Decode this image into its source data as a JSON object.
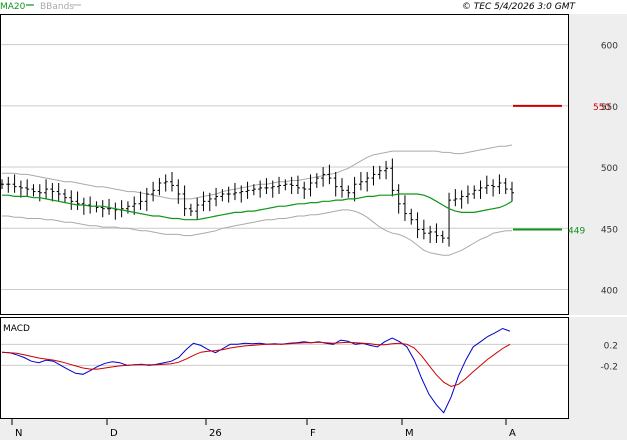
{
  "header": {
    "legend_ma20": "MA20",
    "legend_bbands": "BBands",
    "timestamp": "© TEC 5/4/2026 3:0 GMT"
  },
  "macd_panel": {
    "title": "MACD"
  },
  "colors": {
    "price_bar": "#000000",
    "ma20": "#109618",
    "bbands": "#aaaaaa",
    "resistance": "#cc0000",
    "support": "#109618",
    "macd_line": "#0000cc",
    "signal_line": "#cc0000",
    "grid": "#cccccc",
    "axis_panel_bg": "#eeeeee"
  },
  "chart_data": [
    {
      "type": "ohlc",
      "ylim": [
        380,
        625
      ],
      "y_ticks": [
        "600",
        "550",
        "500",
        "450",
        "400"
      ],
      "x_ticks": [
        "N",
        "D",
        "26",
        "F",
        "M",
        "A"
      ],
      "grid": true,
      "series": [
        {
          "name": "MA20",
          "values": [
            477,
            477,
            476,
            476,
            476,
            475,
            475,
            474,
            473,
            472,
            471,
            470,
            469,
            469,
            468,
            468,
            468,
            467,
            466,
            465,
            464,
            463,
            462,
            461,
            460,
            460,
            459,
            458,
            458,
            457,
            457,
            457,
            458,
            459,
            460,
            461,
            462,
            463,
            463,
            464,
            464,
            465,
            466,
            467,
            468,
            468,
            469,
            470,
            470,
            471,
            471,
            472,
            472,
            473,
            473,
            474,
            474,
            475,
            476,
            476,
            477,
            477,
            477,
            478,
            478,
            478,
            478,
            477,
            475,
            472,
            469,
            466,
            464,
            463,
            463,
            463,
            464,
            465,
            466,
            467,
            469,
            472
          ]
        },
        {
          "name": "BBands",
          "values": [
            [
              495,
              460
            ],
            [
              495,
              460
            ],
            [
              495,
              459
            ],
            [
              494,
              459
            ],
            [
              494,
              458
            ],
            [
              493,
              458
            ],
            [
              492,
              458
            ],
            [
              491,
              457
            ],
            [
              490,
              457
            ],
            [
              489,
              456
            ],
            [
              488,
              455
            ],
            [
              488,
              455
            ],
            [
              487,
              454
            ],
            [
              486,
              453
            ],
            [
              485,
              452
            ],
            [
              484,
              452
            ],
            [
              484,
              451
            ],
            [
              483,
              451
            ],
            [
              482,
              451
            ],
            [
              481,
              450
            ],
            [
              480,
              450
            ],
            [
              480,
              449
            ],
            [
              479,
              448
            ],
            [
              478,
              448
            ],
            [
              477,
              447
            ],
            [
              476,
              446
            ],
            [
              475,
              445
            ],
            [
              474,
              445
            ],
            [
              474,
              445
            ],
            [
              474,
              444
            ],
            [
              474,
              444
            ],
            [
              475,
              445
            ],
            [
              476,
              446
            ],
            [
              477,
              447
            ],
            [
              478,
              448
            ],
            [
              480,
              450
            ],
            [
              481,
              451
            ],
            [
              482,
              452
            ],
            [
              483,
              453
            ],
            [
              484,
              454
            ],
            [
              485,
              455
            ],
            [
              486,
              456
            ],
            [
              486,
              457
            ],
            [
              487,
              457
            ],
            [
              488,
              458
            ],
            [
              488,
              458
            ],
            [
              489,
              459
            ],
            [
              489,
              460
            ],
            [
              490,
              460
            ],
            [
              491,
              461
            ],
            [
              492,
              461
            ],
            [
              493,
              462
            ],
            [
              494,
              463
            ],
            [
              495,
              464
            ],
            [
              497,
              465
            ],
            [
              499,
              465
            ],
            [
              502,
              464
            ],
            [
              505,
              462
            ],
            [
              508,
              459
            ],
            [
              510,
              455
            ],
            [
              511,
              451
            ],
            [
              512,
              448
            ],
            [
              513,
              446
            ],
            [
              513,
              445
            ],
            [
              513,
              443
            ],
            [
              513,
              440
            ],
            [
              513,
              436
            ],
            [
              513,
              432
            ],
            [
              513,
              430
            ],
            [
              513,
              429
            ],
            [
              512,
              428
            ],
            [
              512,
              428
            ],
            [
              511,
              430
            ],
            [
              511,
              432
            ],
            [
              512,
              435
            ],
            [
              513,
              438
            ],
            [
              514,
              441
            ],
            [
              515,
              443
            ],
            [
              516,
              446
            ],
            [
              517,
              447
            ],
            [
              517,
              448
            ],
            [
              518,
              448
            ]
          ]
        },
        {
          "name": "price",
          "ohlc_close": [
            486,
            486,
            484,
            483,
            482,
            480,
            479,
            482,
            480,
            478,
            475,
            472,
            470,
            469,
            468,
            467,
            466,
            466,
            465,
            466,
            468,
            470,
            472,
            478,
            481,
            487,
            488,
            485,
            478,
            466,
            464,
            469,
            472,
            474,
            476,
            478,
            478,
            479,
            480,
            481,
            482,
            483,
            483,
            484,
            485,
            486,
            485,
            483,
            482,
            487,
            491,
            494,
            491,
            484,
            481,
            479,
            486,
            488,
            491,
            494,
            497,
            499,
            481,
            470,
            462,
            457,
            449,
            446,
            447,
            444,
            442,
            473,
            474,
            476,
            478,
            481,
            483,
            485,
            484,
            487,
            482,
            479
          ]
        }
      ],
      "levels": [
        {
          "label": "550",
          "value": 550
        },
        {
          "label": "449",
          "value": 449
        }
      ]
    },
    {
      "type": "line",
      "title": "MACD",
      "y_ticks": [
        "0.2",
        "-0.2"
      ],
      "ylim": [
        -1.2,
        0.7
      ],
      "series": [
        {
          "name": "MACD",
          "values": [
            0.05,
            0.04,
            0.0,
            -0.05,
            -0.12,
            -0.15,
            -0.1,
            -0.12,
            -0.2,
            -0.28,
            -0.35,
            -0.37,
            -0.3,
            -0.22,
            -0.16,
            -0.13,
            -0.15,
            -0.2,
            -0.19,
            -0.18,
            -0.2,
            -0.18,
            -0.15,
            -0.12,
            -0.05,
            0.1,
            0.22,
            0.18,
            0.1,
            0.04,
            0.12,
            0.2,
            0.2,
            0.22,
            0.21,
            0.22,
            0.2,
            0.21,
            0.2,
            0.22,
            0.23,
            0.25,
            0.23,
            0.25,
            0.22,
            0.2,
            0.28,
            0.26,
            0.2,
            0.22,
            0.18,
            0.15,
            0.25,
            0.32,
            0.25,
            0.15,
            -0.1,
            -0.45,
            -0.75,
            -0.95,
            -1.1,
            -0.8,
            -0.4,
            -0.1,
            0.15,
            0.25,
            0.35,
            0.42,
            0.5,
            0.45
          ]
        },
        {
          "name": "Signal",
          "values": [
            0.05,
            0.04,
            0.03,
            0.0,
            -0.03,
            -0.06,
            -0.08,
            -0.1,
            -0.13,
            -0.17,
            -0.21,
            -0.25,
            -0.27,
            -0.27,
            -0.25,
            -0.23,
            -0.21,
            -0.2,
            -0.19,
            -0.19,
            -0.19,
            -0.19,
            -0.18,
            -0.17,
            -0.14,
            -0.08,
            -0.01,
            0.05,
            0.07,
            0.08,
            0.1,
            0.13,
            0.15,
            0.17,
            0.18,
            0.19,
            0.2,
            0.2,
            0.2,
            0.21,
            0.22,
            0.23,
            0.23,
            0.24,
            0.23,
            0.22,
            0.23,
            0.24,
            0.23,
            0.22,
            0.21,
            0.19,
            0.19,
            0.21,
            0.22,
            0.2,
            0.13,
            -0.02,
            -0.2,
            -0.38,
            -0.52,
            -0.6,
            -0.56,
            -0.45,
            -0.32,
            -0.2,
            -0.08,
            0.02,
            0.12,
            0.2
          ]
        }
      ]
    }
  ]
}
